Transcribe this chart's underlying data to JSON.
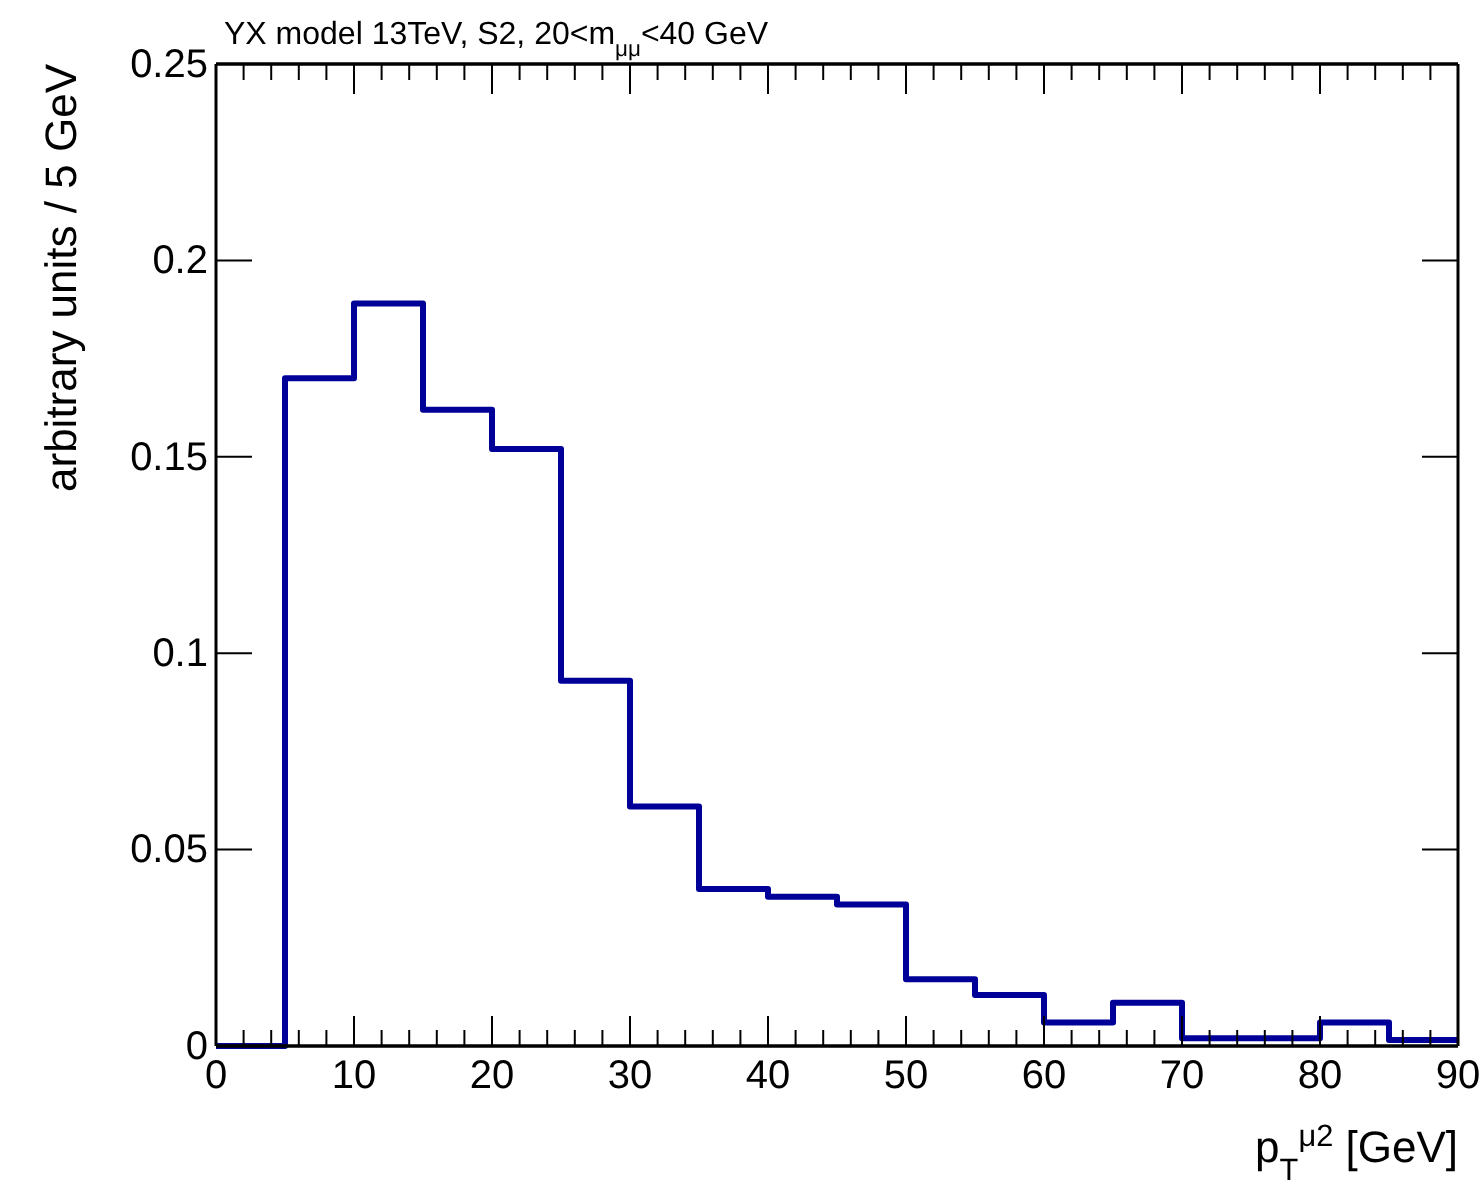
{
  "chart_data": {
    "type": "step",
    "title": "YX model 13TeV, S2, 20<m$_{μμ}$<40 GeV",
    "xlabel": "p$_{T}$$^{μ2}$ [GeV]",
    "ylabel": "arbitrary units / 5 GeV",
    "x": [
      0,
      5,
      10,
      15,
      20,
      25,
      30,
      35,
      40,
      45,
      50,
      55,
      60,
      65,
      70,
      75,
      80,
      85,
      90
    ],
    "values": [
      0,
      0.17,
      0.189,
      0.162,
      0.152,
      0.093,
      0.061,
      0.04,
      0.038,
      0.036,
      0.017,
      0.013,
      0.006,
      0.011,
      0.002,
      0.002,
      0.006,
      0.0015,
      0.0015
    ],
    "color": "#000099",
    "xlim": [
      0,
      90
    ],
    "xticks": [
      0,
      10,
      20,
      30,
      40,
      50,
      60,
      70,
      80,
      90
    ],
    "ylim": [
      0,
      0.25
    ],
    "yticks": [
      0,
      0.05,
      0.1,
      0.15,
      0.2,
      0.25
    ],
    "grid": false
  }
}
